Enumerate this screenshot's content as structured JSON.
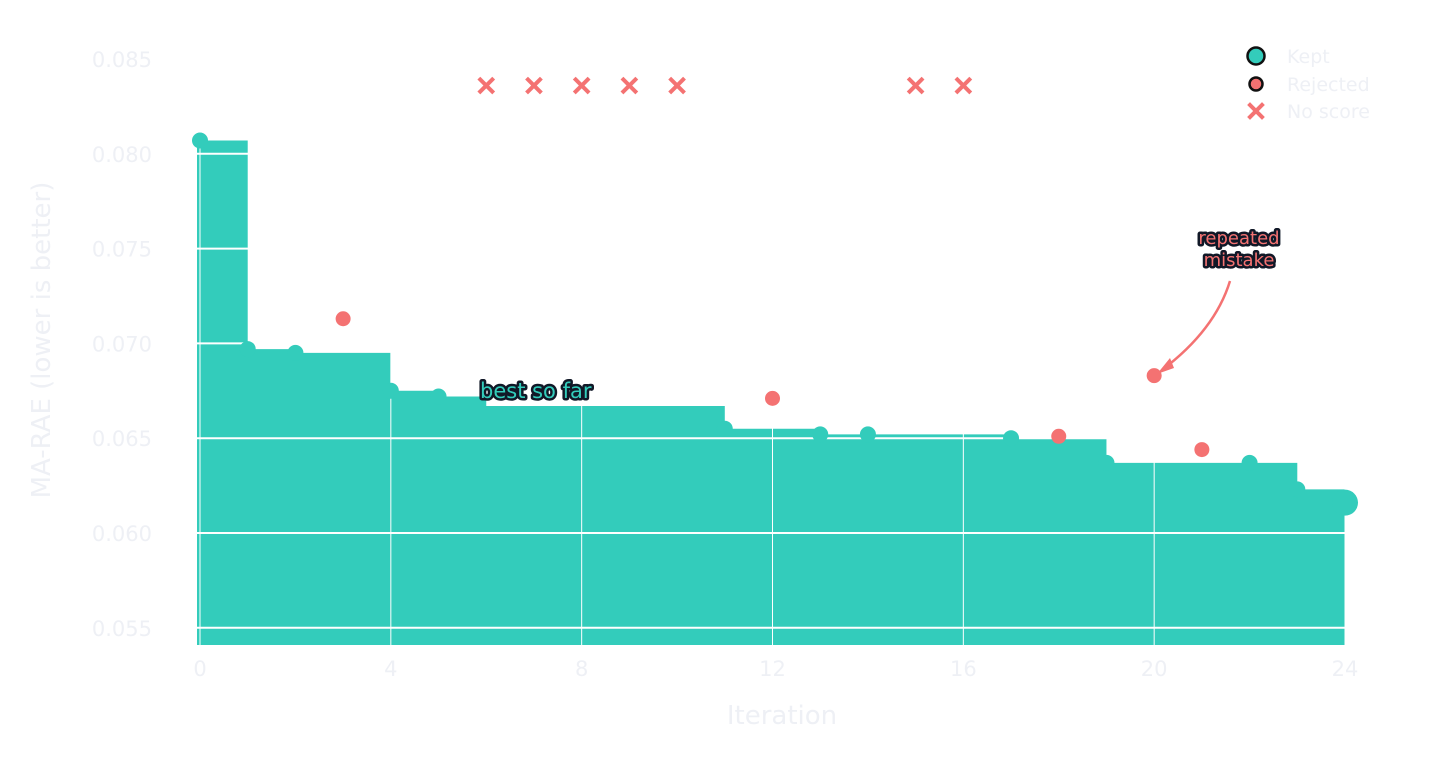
{
  "chart_data": {
    "type": "line",
    "subtype": "step-area with scatter",
    "title": "",
    "xlabel": "Iteration",
    "ylabel": "MA-RAE  (lower is better)",
    "xlim": [
      -0.4,
      24.4
    ],
    "ylim": [
      0.0543,
      0.0865
    ],
    "x_ticks": [
      0,
      4,
      8,
      12,
      16,
      20,
      24
    ],
    "y_ticks": [
      0.055,
      0.06,
      0.065,
      0.07,
      0.075,
      0.08,
      0.085
    ],
    "y_tick_labels": [
      "0.055",
      "0.060",
      "0.065",
      "0.070",
      "0.075",
      "0.080",
      "0.085"
    ],
    "grid": true,
    "legend_position": "upper right",
    "legend": [
      {
        "label": "Kept",
        "marker": "circle",
        "color": "#33ccbb"
      },
      {
        "label": "Rejected",
        "marker": "circle",
        "color": "#f47272"
      },
      {
        "label": "No score",
        "marker": "x",
        "color": "#f47272"
      }
    ],
    "series": [
      {
        "name": "Best so far",
        "kind": "step-area",
        "color": "#33ccbb",
        "x": [
          0,
          1,
          2,
          4,
          5,
          6,
          11,
          13,
          14,
          17,
          19,
          22,
          23,
          24
        ],
        "values": [
          0.0807,
          0.0697,
          0.0695,
          0.0675,
          0.0672,
          0.0667,
          0.0655,
          0.0652,
          0.0652,
          0.065,
          0.0637,
          0.0637,
          0.0623,
          0.0616
        ]
      },
      {
        "name": "Kept",
        "kind": "scatter",
        "color": "#33ccbb",
        "x": [
          0,
          1,
          2,
          4,
          5,
          11,
          13,
          14,
          17,
          19,
          22,
          23,
          24
        ],
        "values": [
          0.0807,
          0.0697,
          0.0695,
          0.0675,
          0.0672,
          0.0655,
          0.0652,
          0.0652,
          0.065,
          0.0637,
          0.0637,
          0.0623,
          0.0616
        ]
      },
      {
        "name": "Rejected",
        "kind": "scatter",
        "color": "#f47272",
        "x": [
          3,
          12,
          18,
          20,
          21
        ],
        "values": [
          0.0713,
          0.0671,
          0.0651,
          0.0683,
          0.0644
        ]
      },
      {
        "name": "No score",
        "kind": "scatter-x",
        "color": "#f47272",
        "x": [
          6,
          7,
          8,
          9,
          10,
          15,
          16
        ],
        "values": [
          0.0836,
          0.0836,
          0.0836,
          0.0836,
          0.0836,
          0.0836,
          0.0836
        ]
      }
    ],
    "annotations": [
      {
        "text": "best so far",
        "x": 6,
        "y": 0.0672,
        "color": "#33ccbb"
      },
      {
        "text": "repeated\nmistake",
        "x": 21.8,
        "y": 0.0749,
        "color": "#f47272",
        "arrow_to": {
          "x": 20,
          "y": 0.0683
        }
      }
    ]
  },
  "labels": {
    "xlabel": "Iteration",
    "ylabel": "MA-RAE  (lower is better)",
    "best_so_far": "best so far",
    "mistake_line1": "repeated",
    "mistake_line2": "mistake",
    "legend_kept": "Kept",
    "legend_rejected": "Rejected",
    "legend_noscore": "No score"
  },
  "colors": {
    "kept": "#33ccbb",
    "rejected": "#f47272",
    "text": "#eef0f5",
    "outline": "#111827"
  }
}
